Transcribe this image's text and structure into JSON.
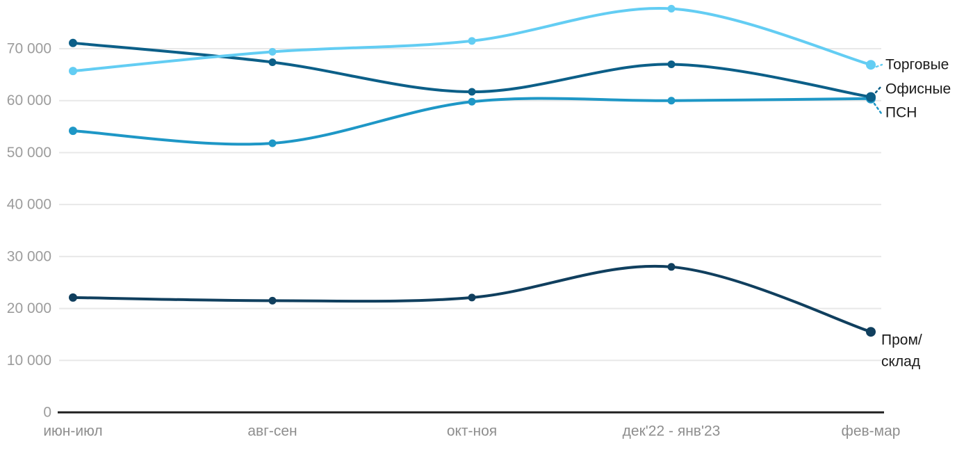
{
  "chart_data": {
    "type": "line",
    "title": "",
    "categories": [
      "июн-июл",
      "авг-сен",
      "окт-ноя",
      "дек'22 - янв'23",
      "фев-мар"
    ],
    "series": [
      {
        "name": "Торговые",
        "color": "#63CDF3",
        "values": [
          65700,
          69400,
          71500,
          77700,
          66900
        ]
      },
      {
        "name": "Офисные",
        "color": "#0C5F88",
        "values": [
          71100,
          67400,
          61700,
          67000,
          60700
        ]
      },
      {
        "name": "ПСН",
        "color": "#1E97C6",
        "values": [
          54200,
          51800,
          59800,
          60000,
          60400
        ]
      },
      {
        "name": "Пром/склад",
        "color": "#103F5E",
        "label_lines": [
          "Пром/",
          "склад"
        ],
        "values": [
          22100,
          21500,
          22100,
          28000,
          15500
        ]
      }
    ],
    "yticks": [
      {
        "value": 0,
        "label": "0"
      },
      {
        "value": 10000,
        "label": "10 000"
      },
      {
        "value": 20000,
        "label": "20 000"
      },
      {
        "value": 30000,
        "label": "30 000"
      },
      {
        "value": 40000,
        "label": "40 000"
      },
      {
        "value": 50000,
        "label": "50 000"
      },
      {
        "value": 60000,
        "label": "60 000"
      },
      {
        "value": 70000,
        "label": "70 000"
      }
    ],
    "ylim": [
      0,
      80000
    ],
    "grid": "horizontal-light",
    "legend_position": "right-inline-annotations"
  },
  "colors": {
    "background": "#FFFFFF",
    "gridline": "#E8E8E8",
    "axis": "#1F1F1F",
    "y_tick_text": "#9C9C9C",
    "x_tick_text": "#8E8E8E",
    "annotation_text": "#1A1A1A"
  }
}
